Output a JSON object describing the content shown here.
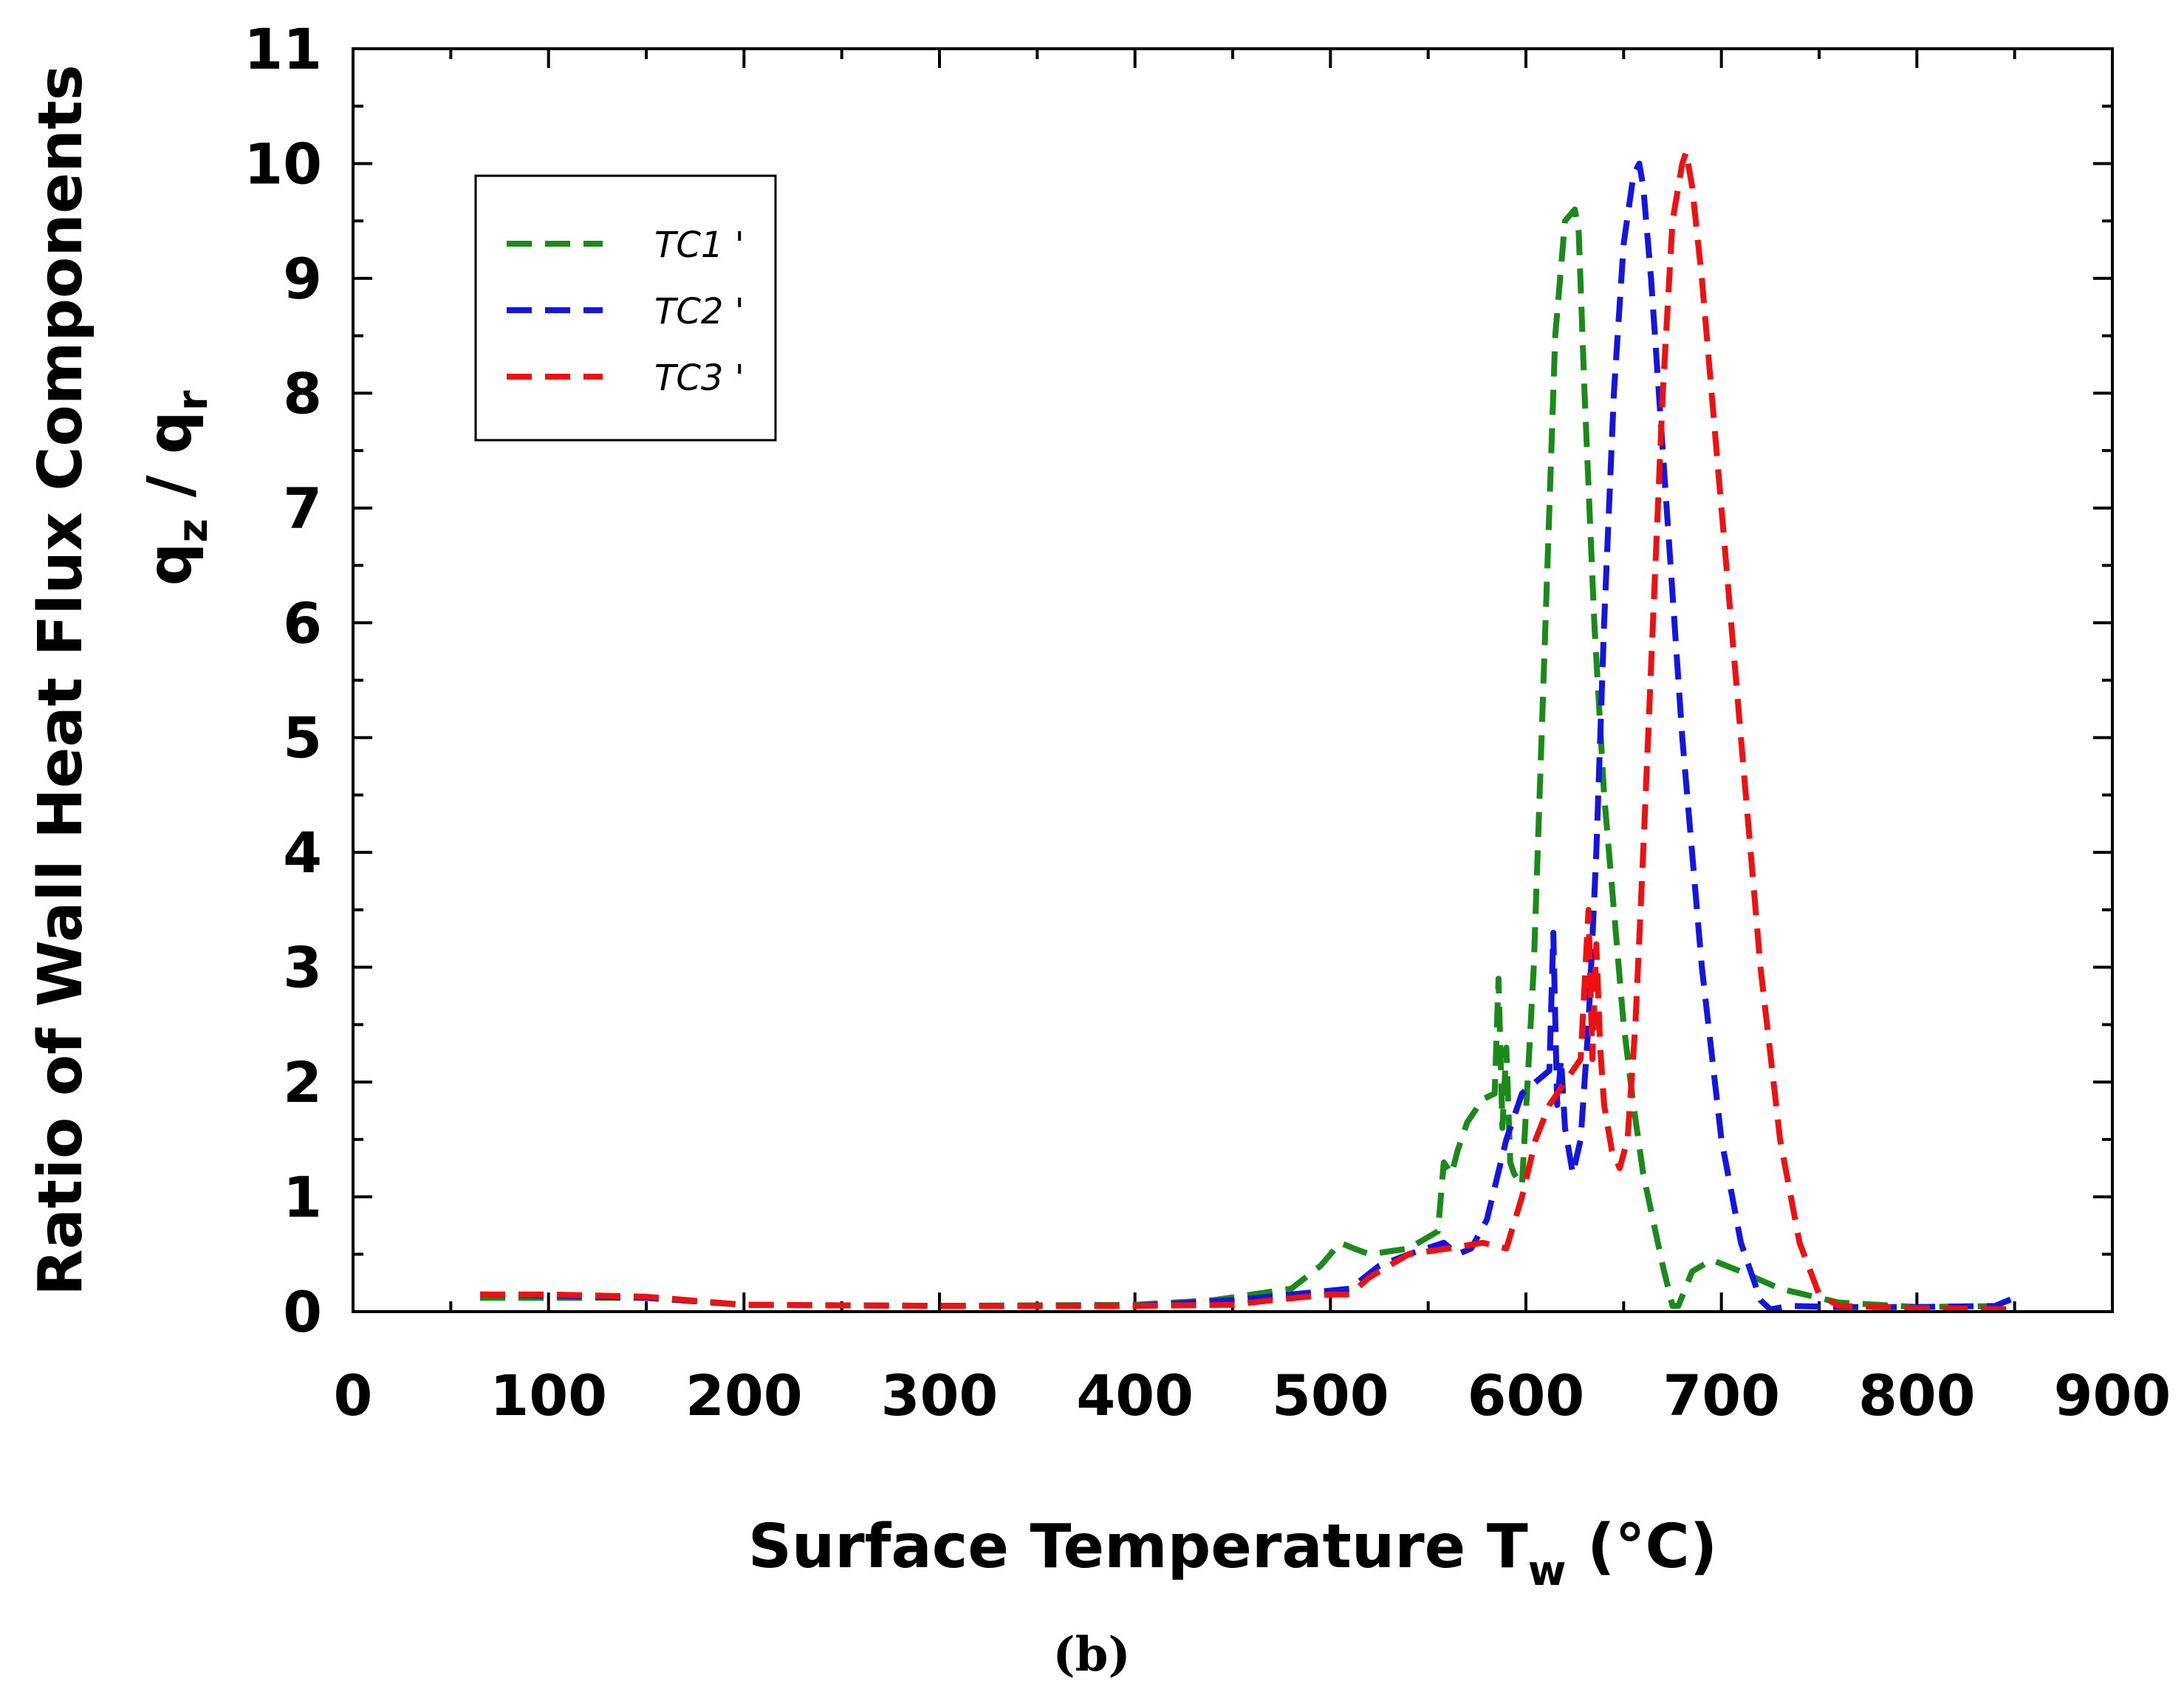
{
  "chart_data": {
    "type": "line",
    "panel_label": "(b)",
    "xlabel": {
      "text": "Surface Temperature  T",
      "sub": "w",
      "suffix": " (°C)"
    },
    "ylabel": {
      "line1": "Ratio of Wall Heat Flux Components",
      "line2": {
        "q1": "q",
        "sub1": "z",
        "sep": " / ",
        "q2": "q",
        "sub2": "r"
      }
    },
    "xlim": [
      0,
      900
    ],
    "ylim": [
      0,
      11
    ],
    "xticks": [
      0,
      100,
      200,
      300,
      400,
      500,
      600,
      700,
      800,
      900
    ],
    "yticks": [
      0,
      1,
      2,
      3,
      4,
      5,
      6,
      7,
      8,
      9,
      10,
      11
    ],
    "xtick_labels": [
      "0",
      "100",
      "200",
      "300",
      "400",
      "500",
      "600",
      "700",
      "800",
      "900"
    ],
    "ytick_labels": [
      "0",
      "1",
      "2",
      "3",
      "4",
      "5",
      "6",
      "7",
      "8",
      "9",
      "10",
      "11"
    ],
    "legend_position": "top-left",
    "series": [
      {
        "name": "TC1 '",
        "color": "#1a8a1a",
        "x": [
          65,
          100,
          150,
          200,
          300,
          400,
          440,
          480,
          495,
          505,
          512,
          520,
          540,
          555,
          558,
          562,
          565,
          570,
          578,
          584,
          586,
          588,
          590,
          592,
          594,
          598,
          604,
          610,
          615,
          620,
          625,
          627,
          630,
          635,
          640,
          645,
          650,
          655,
          660,
          665,
          670,
          675,
          678,
          685,
          695,
          710,
          730,
          760,
          800,
          850
        ],
        "values": [
          0.12,
          0.12,
          0.12,
          0.06,
          0.05,
          0.06,
          0.1,
          0.2,
          0.4,
          0.6,
          0.55,
          0.5,
          0.55,
          0.7,
          1.3,
          1.2,
          1.4,
          1.65,
          1.85,
          1.9,
          2.9,
          1.6,
          2.3,
          1.3,
          1.2,
          1.1,
          3.0,
          6.0,
          8.5,
          9.5,
          9.6,
          9.4,
          8.0,
          6.0,
          4.5,
          3.5,
          2.5,
          1.8,
          1.2,
          0.8,
          0.4,
          0.05,
          0.05,
          0.35,
          0.45,
          0.35,
          0.2,
          0.08,
          0.04,
          0.05
        ]
      },
      {
        "name": "TC2 '",
        "color": "#1515e0",
        "x": [
          65,
          100,
          150,
          200,
          300,
          400,
          450,
          480,
          510,
          525,
          540,
          558,
          565,
          572,
          580,
          590,
          598,
          605,
          612,
          614,
          616,
          618,
          620,
          624,
          628,
          632,
          636,
          640,
          645,
          650,
          655,
          658,
          660,
          664,
          670,
          680,
          690,
          700,
          710,
          720,
          725,
          735,
          760,
          800,
          840,
          850
        ],
        "values": [
          0.15,
          0.14,
          0.12,
          0.06,
          0.05,
          0.05,
          0.1,
          0.15,
          0.2,
          0.4,
          0.5,
          0.6,
          0.5,
          0.55,
          0.8,
          1.5,
          1.9,
          2.0,
          2.1,
          3.3,
          1.8,
          2.2,
          1.6,
          1.2,
          1.5,
          2.5,
          4.0,
          6.0,
          8.0,
          9.3,
          9.9,
          10.0,
          9.8,
          9.0,
          7.5,
          5.0,
          3.0,
          1.5,
          0.6,
          0.1,
          0.02,
          0.05,
          0.04,
          0.04,
          0.05,
          0.12
        ]
      },
      {
        "name": "TC3 '",
        "color": "#ee1111",
        "x": [
          65,
          100,
          150,
          200,
          300,
          400,
          450,
          470,
          500,
          510,
          520,
          540,
          560,
          578,
          590,
          598,
          605,
          612,
          620,
          628,
          632,
          634,
          636,
          638,
          640,
          644,
          648,
          652,
          656,
          660,
          665,
          670,
          675,
          680,
          682,
          685,
          690,
          700,
          710,
          720,
          730,
          740,
          750,
          760,
          800,
          850
        ],
        "values": [
          0.15,
          0.15,
          0.13,
          0.06,
          0.05,
          0.05,
          0.06,
          0.1,
          0.15,
          0.15,
          0.3,
          0.5,
          0.55,
          0.6,
          0.55,
          1.0,
          1.5,
          1.8,
          2.0,
          2.2,
          3.5,
          2.2,
          3.2,
          2.3,
          1.8,
          1.4,
          1.25,
          1.5,
          2.5,
          4.0,
          6.0,
          8.0,
          9.5,
          10.0,
          10.1,
          9.8,
          9.0,
          7.0,
          5.0,
          3.0,
          1.5,
          0.6,
          0.15,
          0.05,
          0.03,
          0.02
        ]
      }
    ]
  }
}
